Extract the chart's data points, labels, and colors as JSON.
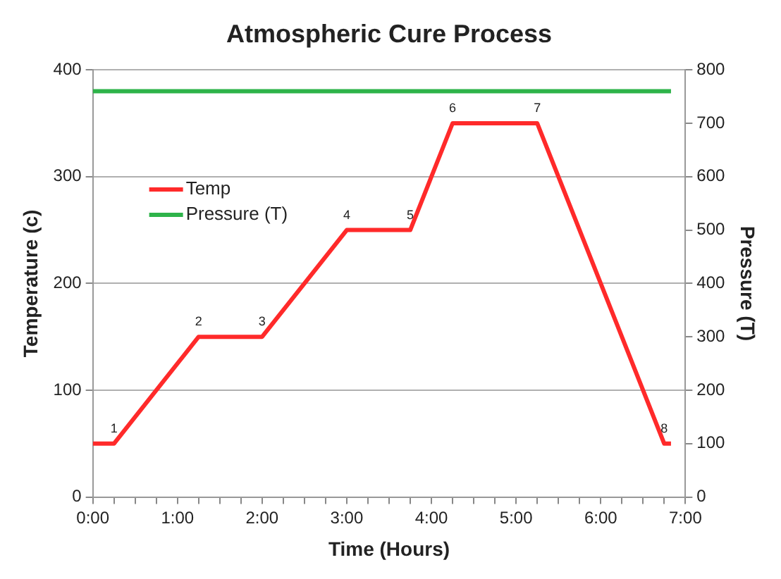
{
  "chart_data": {
    "type": "line",
    "title": "Atmospheric Cure Process",
    "xlabel": "Time (Hours)",
    "ylabel": "Temperature (c)",
    "y2label": "Pressure (T)",
    "series": [
      {
        "name": "Temp",
        "color": "#ff2a2a",
        "x": [
          0,
          0.25,
          1.25,
          2,
          3,
          3.75,
          4.25,
          5.25,
          6.75,
          6.83
        ],
        "values": [
          50,
          50,
          150,
          150,
          250,
          250,
          350,
          350,
          50,
          50
        ]
      },
      {
        "name": "Pressure (T)",
        "color": "#2eb34a",
        "axis": "y2",
        "x": [
          0,
          6.83
        ],
        "values": [
          760,
          760
        ]
      }
    ],
    "xlim": [
      0,
      7
    ],
    "xticks": [
      {
        "value": 0,
        "label": "0:00"
      },
      {
        "value": 0.25,
        "label": null
      },
      {
        "value": 0.5,
        "label": null
      },
      {
        "value": 0.75,
        "label": null
      },
      {
        "value": 1,
        "label": "1:00"
      },
      {
        "value": 1.25,
        "label": null
      },
      {
        "value": 1.5,
        "label": null
      },
      {
        "value": 1.75,
        "label": null
      },
      {
        "value": 2,
        "label": "2:00"
      },
      {
        "value": 2.25,
        "label": null
      },
      {
        "value": 2.5,
        "label": null
      },
      {
        "value": 2.75,
        "label": null
      },
      {
        "value": 3,
        "label": "3:00"
      },
      {
        "value": 3.25,
        "label": null
      },
      {
        "value": 3.5,
        "label": null
      },
      {
        "value": 3.75,
        "label": null
      },
      {
        "value": 4,
        "label": "4:00"
      },
      {
        "value": 4.25,
        "label": null
      },
      {
        "value": 4.5,
        "label": null
      },
      {
        "value": 4.75,
        "label": null
      },
      {
        "value": 5,
        "label": "5:00"
      },
      {
        "value": 5.25,
        "label": null
      },
      {
        "value": 5.5,
        "label": null
      },
      {
        "value": 5.75,
        "label": null
      },
      {
        "value": 6,
        "label": "6:00"
      },
      {
        "value": 6.25,
        "label": null
      },
      {
        "value": 6.5,
        "label": null
      },
      {
        "value": 6.75,
        "label": null
      },
      {
        "value": 7,
        "label": "7:00"
      }
    ],
    "ylim": [
      0,
      400
    ],
    "yticks": [
      0,
      100,
      200,
      300,
      400
    ],
    "y2lim": [
      0,
      800
    ],
    "y2ticks": [
      0,
      100,
      200,
      300,
      400,
      500,
      600,
      700,
      800
    ],
    "annotations": [
      {
        "text": "1",
        "x": 0.25,
        "y": 50
      },
      {
        "text": "2",
        "x": 1.25,
        "y": 150
      },
      {
        "text": "3",
        "x": 2,
        "y": 150
      },
      {
        "text": "4",
        "x": 3,
        "y": 250
      },
      {
        "text": "5",
        "x": 3.75,
        "y": 250
      },
      {
        "text": "6",
        "x": 4.25,
        "y": 350
      },
      {
        "text": "7",
        "x": 5.25,
        "y": 350
      },
      {
        "text": "8",
        "x": 6.75,
        "y": 50
      }
    ],
    "grid": "y",
    "legend": "left",
    "marker": "none",
    "line_style": "solid"
  }
}
